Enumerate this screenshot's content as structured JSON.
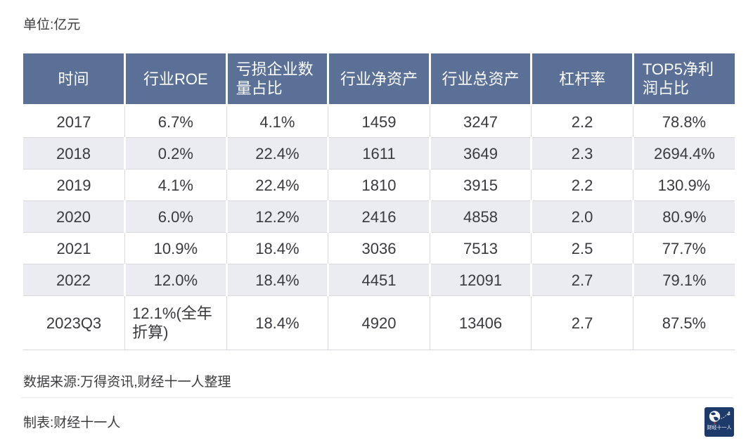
{
  "labels": {
    "unit": "单位:亿元"
  },
  "chart_data": {
    "type": "table",
    "columns": [
      "时间",
      "行业ROE",
      "亏损企业数量占比",
      "行业净资产",
      "行业总资产",
      "杠杆率",
      "TOP5净利润占比"
    ],
    "rows": [
      [
        "2017",
        "6.7%",
        "4.1%",
        "1459",
        "3247",
        "2.2",
        "78.8%"
      ],
      [
        "2018",
        "0.2%",
        "22.4%",
        "1611",
        "3649",
        "2.3",
        "2694.4%"
      ],
      [
        "2019",
        "4.1%",
        "22.4%",
        "1810",
        "3915",
        "2.2",
        "130.9%"
      ],
      [
        "2020",
        "6.0%",
        "12.2%",
        "2416",
        "4858",
        "2.0",
        "80.9%"
      ],
      [
        "2021",
        "10.9%",
        "18.4%",
        "3036",
        "7513",
        "2.5",
        "77.7%"
      ],
      [
        "2022",
        "12.0%",
        "18.4%",
        "4451",
        "12091",
        "2.7",
        "79.1%"
      ],
      [
        "2023Q3",
        "12.1%(全年折算)",
        "18.4%",
        "4920",
        "13406",
        "2.7",
        "87.5%"
      ]
    ],
    "layout_hints": {
      "alternating_shaded_rows": [
        1,
        3,
        5
      ],
      "header_bg": "#5b7096",
      "alt_row_bg": "#ebecf1",
      "unit_note": "单位:亿元"
    }
  },
  "footer": {
    "source": "数据来源:万得资讯,财经十一人整理",
    "credit": "制表:财经十一人",
    "logo_text": "财经十一人"
  },
  "colors": {
    "header_bg": "#5b7096",
    "alt_row_bg": "#ebecf1",
    "logo_bg": "#1e3a6b",
    "logo_accent_red": "#c8392f",
    "grid_line": "#d8d9dd",
    "text": "#3a3a3e"
  }
}
